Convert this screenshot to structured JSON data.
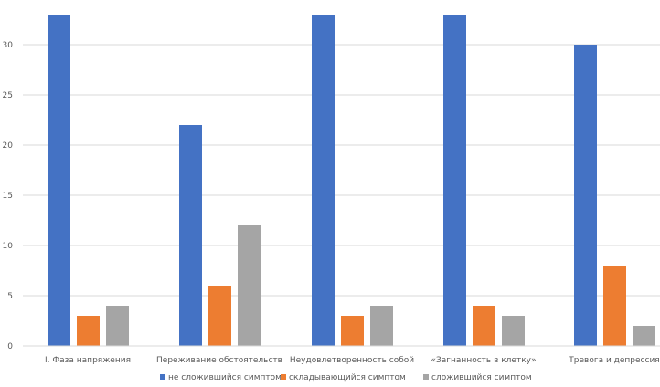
{
  "chart_data": {
    "type": "bar",
    "categories": [
      "I. Фаза напряжения",
      "Переживание обстоятельств",
      "Неудовлетворенность собой",
      "«Загнанность в клетку»",
      "Тревога и депрессия"
    ],
    "series": [
      {
        "name": "не сложившийся симптом",
        "color": "#4472C4",
        "values": [
          33,
          22,
          33,
          33,
          30
        ]
      },
      {
        "name": "складывающийся симптом",
        "color": "#ED7D31",
        "values": [
          3,
          6,
          3,
          4,
          8
        ]
      },
      {
        "name": "сложившийся симптом",
        "color": "#A5A5A5",
        "values": [
          4,
          12,
          4,
          3,
          2
        ]
      }
    ],
    "yticks": [
      0,
      5,
      10,
      15,
      20,
      25,
      30
    ],
    "ylim": [
      0,
      33
    ],
    "grid": true,
    "legend": "bottom",
    "title": "",
    "xlabel": "",
    "ylabel": ""
  }
}
